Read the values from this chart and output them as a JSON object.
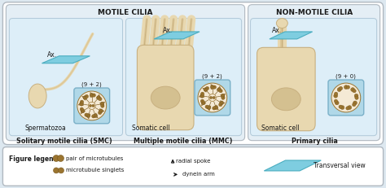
{
  "bg_color": "#dde8f0",
  "panel_bg": "#e4eef5",
  "white": "#ffffff",
  "light_blue": "#7ecde0",
  "light_blue_fill": "#a8dcea",
  "cell_color": "#e8d8b0",
  "cell_mid": "#ddc898",
  "cell_dark": "#c8b080",
  "cell_nucleus": "#d4c090",
  "brown": "#9b7530",
  "brown_dark": "#7a5a20",
  "text_dark": "#1a1a1a",
  "border_gray": "#b0b8c0",
  "motile_header": "MOTILE CILIA",
  "nonmotile_header": "NON-MOTILE CILIA",
  "label_smc": "Solitary motile cilia (SMC)",
  "label_mmc": "Multiple motile cilia (MMC)",
  "label_primary": "Primary cilia",
  "label_sperm": "Spermatozoa",
  "label_somatic1": "Somatic cell",
  "label_somatic2": "Somatic cell",
  "ax_label": "Ax.",
  "formula_92": "(9 + 2)",
  "formula_90": "(9 + 0)",
  "legend_title": "Figure legend:",
  "legend_pair": "pair of microtubules",
  "legend_singlets": "microtubule singlets",
  "legend_spoke": "radial spoke",
  "legend_dynein": "dynein arm",
  "legend_transversal": "Transversal view"
}
